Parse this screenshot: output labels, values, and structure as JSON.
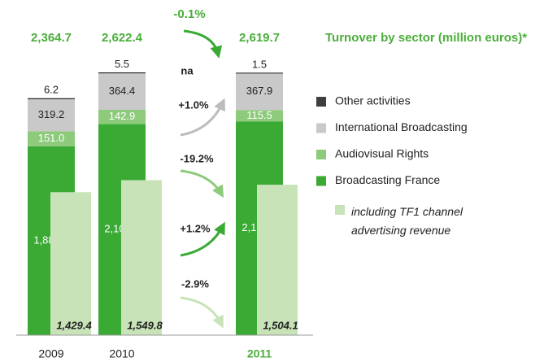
{
  "chart_data": {
    "type": "stacked_bar",
    "title": "Turnover by sector (million euros)*",
    "categories": [
      "2009",
      "2010",
      "2011"
    ],
    "series": [
      {
        "name": "Broadcasting France",
        "color": "#3aaa35",
        "values": [
          1888.3,
          2109.6,
          2134.8
        ],
        "value_labels": [
          "1,888.3",
          "2,109.6",
          "2,134.8"
        ]
      },
      {
        "name": "Audiovisual Rights",
        "color": "#8dca7b",
        "values": [
          151.0,
          142.9,
          115.5
        ],
        "value_labels": [
          "151.0",
          "142.9",
          "115.5"
        ]
      },
      {
        "name": "International Broadcasting",
        "color": "#c9c9c9",
        "values": [
          319.2,
          364.4,
          367.9
        ],
        "value_labels": [
          "319.2",
          "364.4",
          "367.9"
        ]
      },
      {
        "name": "Other activities",
        "color": "#3f3f3f",
        "values": [
          6.2,
          5.5,
          1.5
        ],
        "value_labels": [
          "6.2",
          "5.5",
          "1.5"
        ]
      }
    ],
    "overlay": {
      "name": "including TF1 channel advertising revenue",
      "color": "#c8e3b8",
      "values": [
        1429.4,
        1549.8,
        1504.1
      ],
      "value_labels": [
        "1,429.4",
        "1,549.8",
        "1,504.1"
      ]
    },
    "totals": [
      2364.7,
      2622.4,
      2619.7
    ],
    "total_labels": [
      "2,364.7",
      "2,622.4",
      "2,619.7"
    ],
    "change_labels": {
      "total": "-0.1%",
      "other": "na",
      "international": "+1.0%",
      "rights": "-19.2%",
      "france": "+1.2%",
      "tf1": "-2.9%"
    },
    "ylim": [
      0,
      2700
    ]
  }
}
